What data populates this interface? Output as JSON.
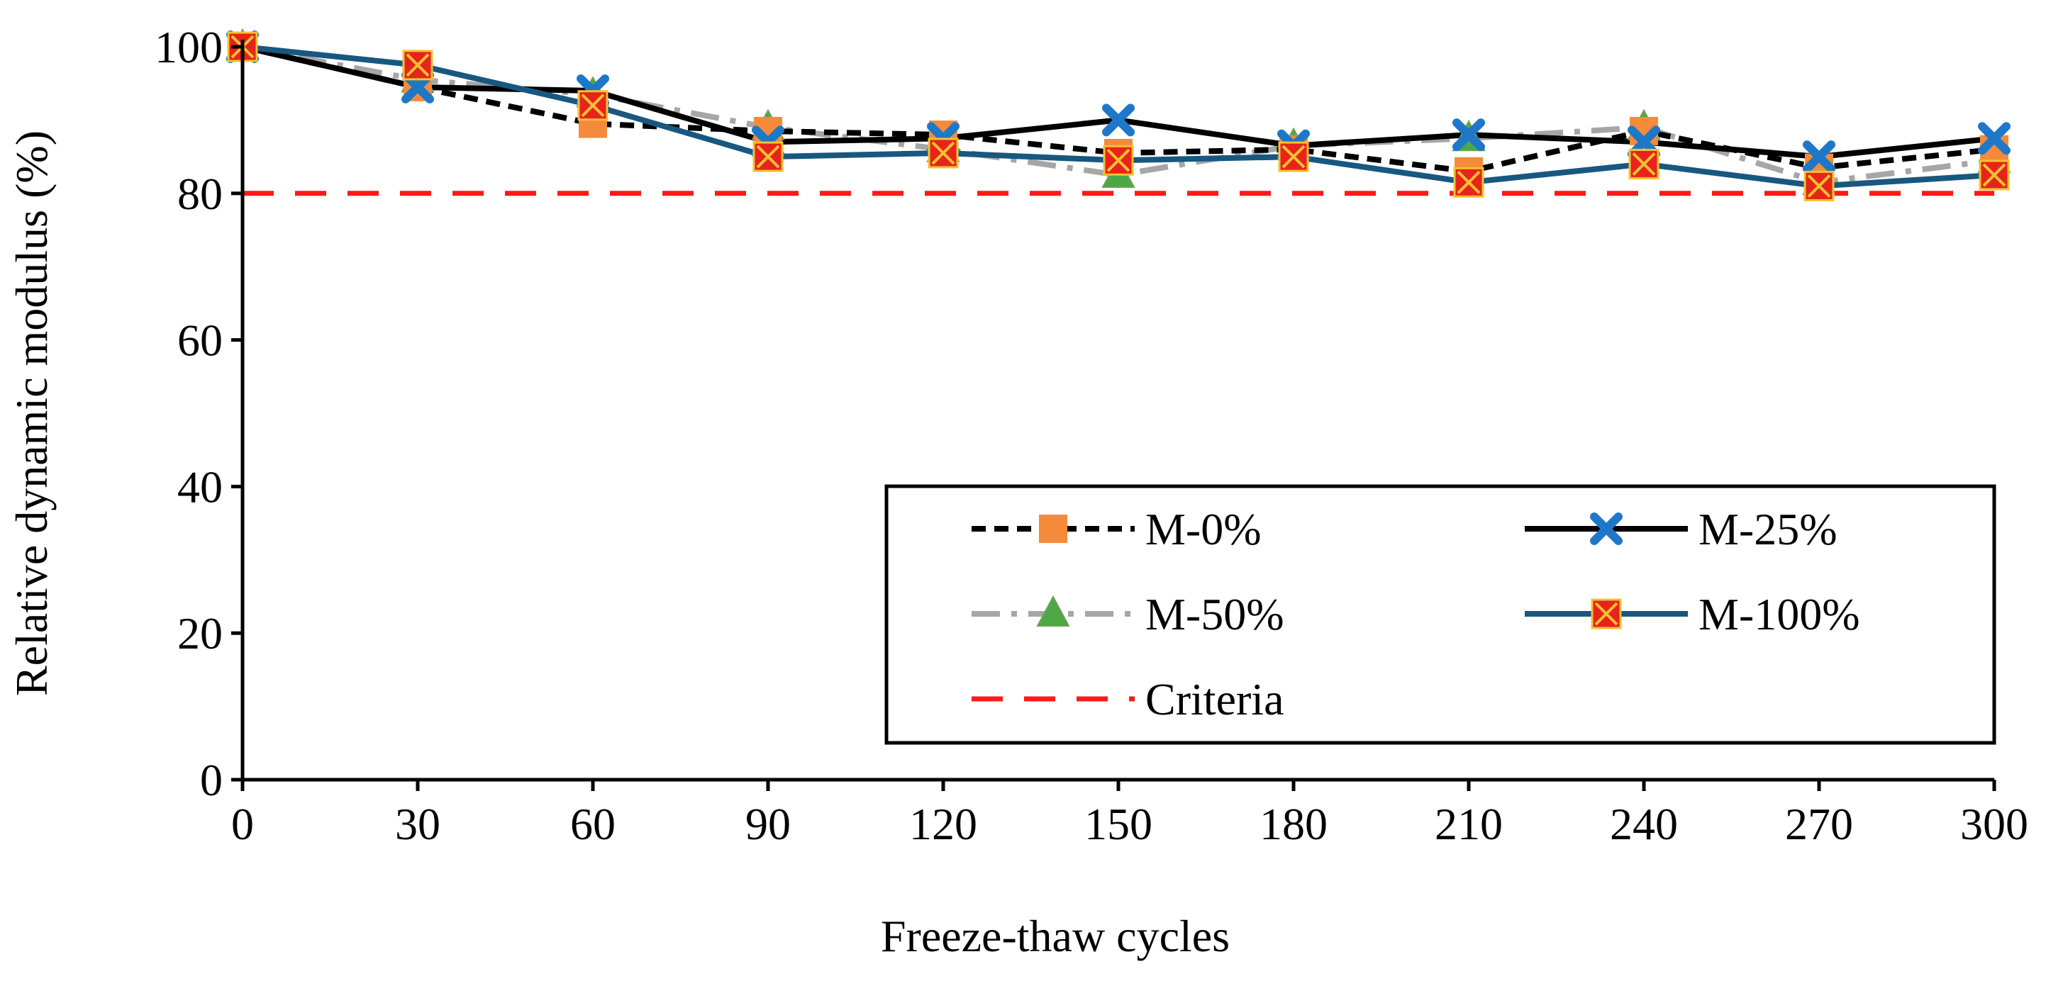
{
  "chart_data": {
    "type": "line",
    "xlabel": "Freeze-thaw cycles",
    "ylabel": "Relative dynamic modulus (%)",
    "x": [
      0,
      30,
      60,
      90,
      120,
      150,
      180,
      210,
      240,
      270,
      300
    ],
    "xlim": [
      0,
      300
    ],
    "ylim": [
      0,
      100
    ],
    "yticks": [
      0,
      20,
      40,
      60,
      80,
      100
    ],
    "grid": false,
    "legend_position": "bottom-right",
    "series": [
      {
        "name": "M-0%",
        "values": [
          100,
          94.5,
          89.5,
          88.5,
          88.0,
          85.5,
          86.0,
          83.0,
          88.5,
          83.5,
          86.0
        ],
        "line_color": "#000000",
        "line_style": "dotted",
        "marker": "square",
        "marker_color": "#F58B3A"
      },
      {
        "name": "M-25%",
        "values": [
          100,
          94.5,
          94.0,
          87.0,
          87.5,
          90.0,
          86.5,
          88.0,
          87.0,
          85.0,
          87.5
        ],
        "line_color": "#000000",
        "line_style": "solid",
        "marker": "x",
        "marker_color": "#1F77C8"
      },
      {
        "name": "M-50%",
        "values": [
          100,
          95.5,
          93.5,
          89.0,
          86.0,
          82.5,
          86.5,
          87.5,
          89.0,
          81.5,
          84.5
        ],
        "line_color": "#A6A6A6",
        "line_style": "dashdot",
        "marker": "triangle",
        "marker_color": "#4CA844"
      },
      {
        "name": "M-100%",
        "values": [
          100,
          97.5,
          92.0,
          85.0,
          85.5,
          84.5,
          85.0,
          81.5,
          84.0,
          81.0,
          82.5
        ],
        "line_color": "#18577F",
        "line_style": "solid",
        "marker": "boxx",
        "marker_color": "#E8231C"
      },
      {
        "name": "Criteria",
        "values": [
          80,
          80,
          80,
          80,
          80,
          80,
          80,
          80,
          80,
          80,
          80
        ],
        "line_color": "#FF1A1A",
        "line_style": "dashed",
        "marker": "none",
        "marker_color": ""
      }
    ]
  }
}
